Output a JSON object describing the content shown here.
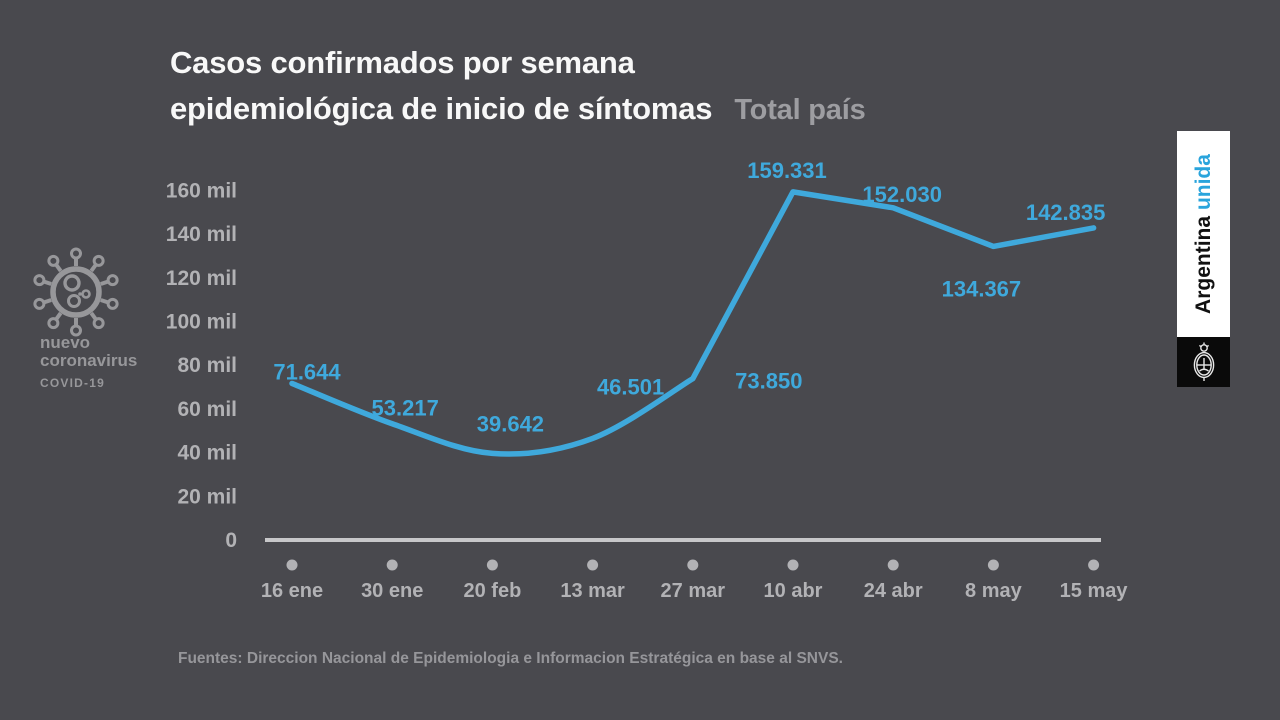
{
  "title": {
    "line1": "Casos confirmados por semana",
    "line2": "epidemiológica de inicio de síntomas",
    "scope_label": "Total país"
  },
  "branding_left": {
    "line1": "nuevo",
    "line2": "coronavirus",
    "line3": "COVID-19"
  },
  "branding_right": {
    "text_black": "Argentina",
    "text_accent": "unida"
  },
  "footer": {
    "source": "Fuentes: Direccion Nacional de Epidemiologia e Informacion Estratégica en base al SNVS."
  },
  "colors": {
    "background": "#49494e",
    "title_white": "#f8f8f8",
    "muted_gray": "#9d9da1",
    "brand_gray": "#97979a",
    "footer_gray": "#96969a",
    "banner_cyan": "#29a4dc",
    "accent_blue": "#3fa9dc",
    "axis_line": "#c7c7c9",
    "tick_gray": "#b2b2b5"
  },
  "chart_data": {
    "type": "line",
    "title": "Casos confirmados por semana epidemiológica de inicio de síntomas",
    "subtitle": "Total país",
    "categories": [
      "16 ene",
      "30 ene",
      "20 feb",
      "13 mar",
      "27 mar",
      "10 abr",
      "24 abr",
      "8 may",
      "15 may"
    ],
    "values": [
      71644,
      53217,
      39642,
      46501,
      73850,
      159331,
      152030,
      134367,
      142835
    ],
    "value_labels": [
      "71.644",
      "53.217",
      "39.642",
      "46.501",
      "73.850",
      "159.331",
      "152.030",
      "134.367",
      "142.835"
    ],
    "y_ticks": [
      "0",
      "20 mil",
      "40 mil",
      "60 mil",
      "80 mil",
      "100 mil",
      "120 mil",
      "140 mil",
      "160 mil"
    ],
    "ylim": [
      0,
      160000
    ],
    "grid": false,
    "legend": "none",
    "line_color": "#3fa9dc",
    "xlabel": "",
    "ylabel": ""
  }
}
